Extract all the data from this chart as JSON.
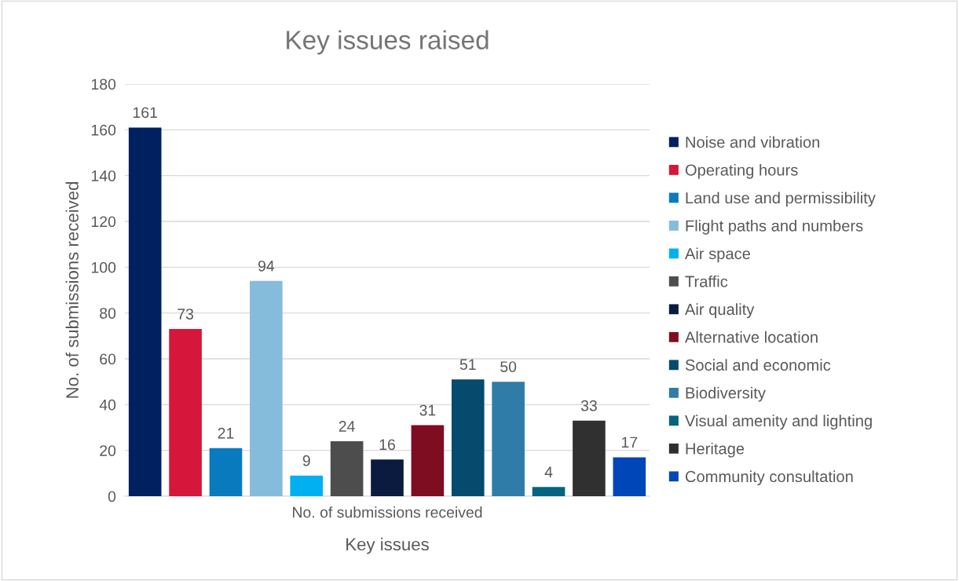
{
  "chart_data": {
    "type": "bar",
    "title": "Key issues raised",
    "xlabel": "Key issues",
    "ylabel": "No. of submissions received",
    "categories": [
      null,
      null,
      null,
      null,
      null,
      null,
      null,
      null,
      null,
      null,
      null,
      null,
      null
    ],
    "annotations": [
      "No. of submissions received"
    ],
    "series": [
      {
        "name": "Noise and vibration",
        "color": "#002060",
        "values": [
          161,
          null,
          null,
          null,
          null,
          null,
          null,
          null,
          null,
          null,
          null,
          null,
          null
        ]
      },
      {
        "name": "Operating hours",
        "color": "#d6163a",
        "values": [
          null,
          73,
          null,
          null,
          null,
          null,
          null,
          null,
          null,
          null,
          null,
          null,
          null
        ]
      },
      {
        "name": "Land use and permissibility",
        "color": "#0a7abf",
        "values": [
          null,
          null,
          21,
          null,
          null,
          null,
          null,
          null,
          null,
          null,
          null,
          null,
          null
        ]
      },
      {
        "name": "Flight paths and numbers",
        "color": "#85bcdb",
        "values": [
          null,
          null,
          null,
          94,
          null,
          null,
          null,
          null,
          null,
          null,
          null,
          null,
          null
        ]
      },
      {
        "name": "Air space",
        "color": "#00b0f0",
        "values": [
          null,
          null,
          null,
          null,
          9,
          null,
          null,
          null,
          null,
          null,
          null,
          null,
          null
        ]
      },
      {
        "name": "Traffic",
        "color": "#4d4d4d",
        "values": [
          null,
          null,
          null,
          null,
          null,
          24,
          null,
          null,
          null,
          null,
          null,
          null,
          null
        ]
      },
      {
        "name": "Air quality",
        "color": "#0b1b3f",
        "values": [
          null,
          null,
          null,
          null,
          null,
          null,
          16,
          null,
          null,
          null,
          null,
          null,
          null
        ]
      },
      {
        "name": "Alternative location",
        "color": "#7f0d22",
        "values": [
          null,
          null,
          null,
          null,
          null,
          null,
          null,
          31,
          null,
          null,
          null,
          null,
          null
        ]
      },
      {
        "name": "Social and economic",
        "color": "#064a6e",
        "values": [
          null,
          null,
          null,
          null,
          null,
          null,
          null,
          null,
          51,
          null,
          null,
          null,
          null
        ]
      },
      {
        "name": "Biodiversity",
        "color": "#2f7ca8",
        "values": [
          null,
          null,
          null,
          null,
          null,
          null,
          null,
          null,
          null,
          50,
          null,
          null,
          null
        ]
      },
      {
        "name": "Visual amenity and lighting",
        "color": "#036480",
        "values": [
          null,
          null,
          null,
          null,
          null,
          null,
          null,
          null,
          null,
          null,
          4,
          null,
          null
        ]
      },
      {
        "name": "Heritage",
        "color": "#303030",
        "values": [
          null,
          null,
          null,
          null,
          null,
          null,
          null,
          null,
          null,
          null,
          null,
          33,
          null
        ]
      },
      {
        "name": "Community consultation",
        "color": "#0046b8",
        "values": [
          null,
          null,
          null,
          null,
          null,
          null,
          null,
          null,
          null,
          null,
          null,
          null,
          17
        ]
      }
    ],
    "ylim": [
      0,
      180
    ],
    "yticks": [
      0,
      20,
      40,
      60,
      80,
      100,
      120,
      140,
      160,
      180
    ],
    "grid": "y",
    "legend": "right",
    "data_labels": true
  }
}
